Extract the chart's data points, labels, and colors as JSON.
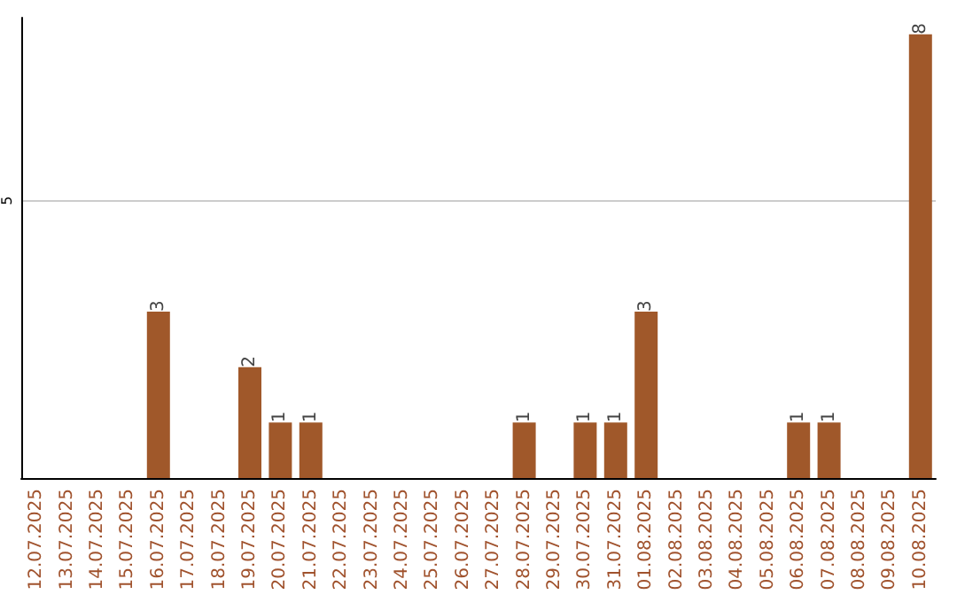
{
  "chart_data": {
    "type": "bar",
    "categories": [
      "12.07.2025",
      "13.07.2025",
      "14.07.2025",
      "15.07.2025",
      "16.07.2025",
      "17.07.2025",
      "18.07.2025",
      "19.07.2025",
      "20.07.2025",
      "21.07.2025",
      "22.07.2025",
      "23.07.2025",
      "24.07.2025",
      "25.07.2025",
      "26.07.2025",
      "27.07.2025",
      "28.07.2025",
      "29.07.2025",
      "30.07.2025",
      "31.07.2025",
      "01.08.2025",
      "02.08.2025",
      "03.08.2025",
      "04.08.2025",
      "05.08.2025",
      "06.08.2025",
      "07.08.2025",
      "08.08.2025",
      "09.08.2025",
      "10.08.2025"
    ],
    "values": [
      0,
      0,
      0,
      0,
      3,
      0,
      0,
      2,
      1,
      1,
      0,
      0,
      0,
      0,
      0,
      0,
      1,
      0,
      1,
      1,
      3,
      0,
      0,
      0,
      0,
      1,
      1,
      0,
      0,
      8
    ],
    "value_labels": [
      null,
      null,
      null,
      null,
      "3",
      null,
      null,
      "2",
      "1",
      "1",
      null,
      null,
      null,
      null,
      null,
      null,
      "1",
      null,
      "1",
      "1",
      "3",
      null,
      null,
      null,
      null,
      "1",
      "1",
      null,
      null,
      "8"
    ],
    "color": "#a0582a",
    "ylim": [
      0,
      8.3
    ],
    "yticks": [
      5
    ],
    "grid": "y"
  }
}
